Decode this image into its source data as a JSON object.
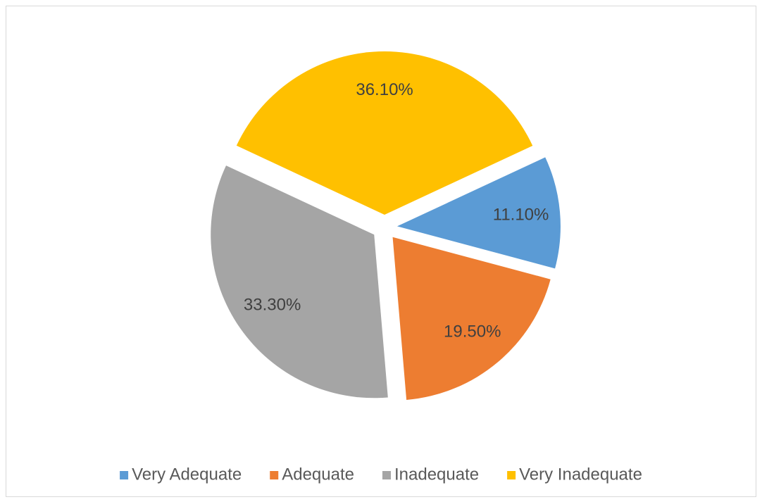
{
  "chart_data": {
    "type": "pie",
    "categories": [
      "Very Adequate",
      "Adequate",
      "Inadequate",
      "Very Inadequate"
    ],
    "values": [
      11.1,
      19.5,
      33.3,
      36.1
    ],
    "value_labels": [
      "11.10%",
      "19.50%",
      "33.30%",
      "36.10%"
    ],
    "colors": [
      "#5b9bd5",
      "#ed7d31",
      "#a5a5a5",
      "#ffc000"
    ],
    "legend": "bottom"
  }
}
